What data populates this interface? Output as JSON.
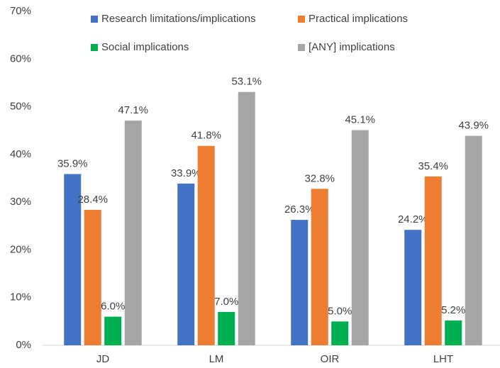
{
  "chart_data": {
    "type": "bar",
    "categories": [
      "JD",
      "LM",
      "OIR",
      "LHT"
    ],
    "series": [
      {
        "name": "Research limitations/implications",
        "color": "#4472c4",
        "values": [
          35.9,
          33.9,
          26.3,
          24.2
        ],
        "value_labels": [
          "35.9%",
          "33.9%",
          "26.3%",
          "24.2%"
        ]
      },
      {
        "name": "Practical implications",
        "color": "#ed7d31",
        "values": [
          28.4,
          41.8,
          32.8,
          35.4
        ],
        "value_labels": [
          "28.4%",
          "41.8%",
          "32.8%",
          "35.4%"
        ]
      },
      {
        "name": "Social implications",
        "color": "#00b050",
        "values": [
          6.0,
          7.0,
          5.0,
          5.2
        ],
        "value_labels": [
          "6.0%",
          "7.0%",
          "5.0%",
          "5.2%"
        ]
      },
      {
        "name": "[ANY] implications",
        "color": "#a5a5a5",
        "values": [
          47.1,
          53.1,
          45.1,
          43.9
        ],
        "value_labels": [
          "47.1%",
          "53.1%",
          "45.1%",
          "43.9%"
        ]
      }
    ],
    "ylim": [
      0,
      70
    ],
    "yticks": [
      {
        "value": 0,
        "label": "0%"
      },
      {
        "value": 10,
        "label": "10%"
      },
      {
        "value": 20,
        "label": "20%"
      },
      {
        "value": 30,
        "label": "30%"
      },
      {
        "value": 40,
        "label": "40%"
      },
      {
        "value": 50,
        "label": "50%"
      },
      {
        "value": 60,
        "label": "60%"
      },
      {
        "value": 70,
        "label": "70%"
      }
    ],
    "grid": false,
    "legend": "top"
  }
}
